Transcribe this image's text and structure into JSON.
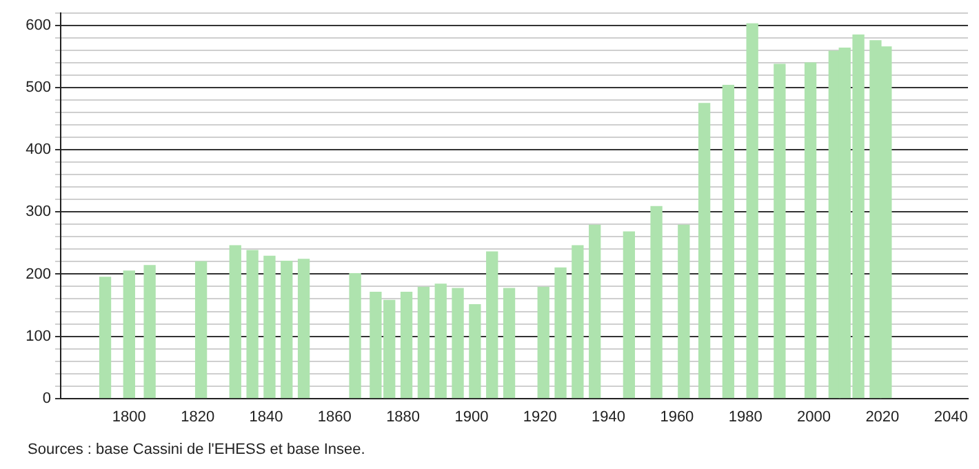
{
  "chart_data": {
    "type": "bar",
    "color": "#aee3ae",
    "x": [
      1793,
      1800,
      1806,
      1821,
      1831,
      1836,
      1841,
      1846,
      1851,
      1866,
      1872,
      1876,
      1881,
      1886,
      1891,
      1896,
      1901,
      1906,
      1911,
      1921,
      1926,
      1931,
      1936,
      1946,
      1954,
      1962,
      1968,
      1975,
      1982,
      1990,
      1999,
      2006,
      2009,
      2013,
      2018,
      2021
    ],
    "values": [
      195,
      205,
      214,
      220,
      246,
      238,
      229,
      221,
      224,
      201,
      171,
      158,
      171,
      179,
      184,
      177,
      151,
      236,
      177,
      179,
      210,
      246,
      279,
      268,
      309,
      279,
      475,
      504,
      603,
      538,
      540,
      559,
      564,
      585,
      576,
      566
    ],
    "xlim": [
      1780,
      2045
    ],
    "xticks": [
      1800,
      1820,
      1840,
      1860,
      1880,
      1900,
      1920,
      1940,
      1960,
      1980,
      2000,
      2020,
      2040
    ],
    "ylim": [
      0,
      620
    ],
    "yticks": [
      0,
      {
        "value": 20,
        "label": null
      },
      {
        "value": 40,
        "label": null
      },
      {
        "value": 60,
        "label": null
      },
      {
        "value": 80,
        "label": null
      },
      100,
      {
        "value": 120,
        "label": null
      },
      {
        "value": 140,
        "label": null
      },
      {
        "value": 160,
        "label": null
      },
      {
        "value": 180,
        "label": null
      },
      200,
      {
        "value": 220,
        "label": null
      },
      {
        "value": 240,
        "label": null
      },
      {
        "value": 260,
        "label": null
      },
      {
        "value": 280,
        "label": null
      },
      300,
      {
        "value": 320,
        "label": null
      },
      {
        "value": 340,
        "label": null
      },
      {
        "value": 360,
        "label": null
      },
      {
        "value": 380,
        "label": null
      },
      400,
      {
        "value": 420,
        "label": null
      },
      {
        "value": 440,
        "label": null
      },
      {
        "value": 460,
        "label": null
      },
      {
        "value": 480,
        "label": null
      },
      500,
      {
        "value": 520,
        "label": null
      },
      {
        "value": 540,
        "label": null
      },
      {
        "value": 560,
        "label": null
      },
      {
        "value": 580,
        "label": null
      },
      600,
      {
        "value": 620,
        "label": null
      }
    ],
    "grid": "y",
    "legend": false,
    "annotations": [
      "Sources : base Cassini de l'EHESS et base Insee."
    ]
  }
}
